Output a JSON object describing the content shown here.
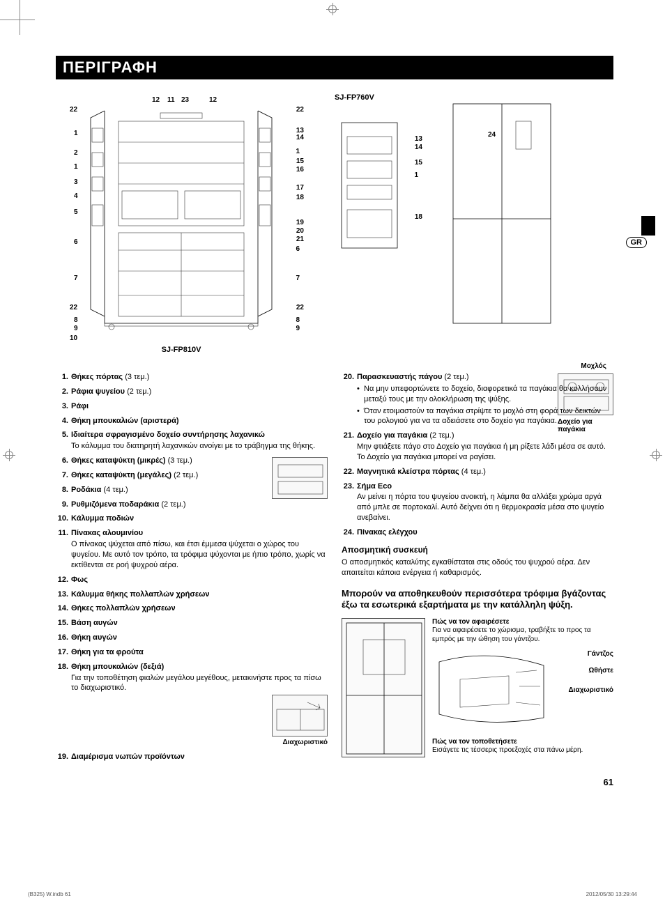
{
  "header": {
    "title": "ΠΕΡΙΓΡΑΦΗ"
  },
  "badge_language": "GR",
  "models": {
    "main": "SJ-FP810V",
    "small": "SJ-FP760V"
  },
  "main_callouts_left": [
    "22",
    "1",
    "2",
    "1",
    "3",
    "4",
    "5",
    "6",
    "7",
    "22",
    "8",
    "9",
    "10"
  ],
  "main_callouts_top": [
    "12",
    "11",
    "23",
    "12"
  ],
  "main_callouts_right": [
    "22",
    "13",
    "14",
    "1",
    "15",
    "16",
    "17",
    "18",
    "19",
    "20",
    "21",
    "6",
    "7",
    "22",
    "8",
    "9"
  ],
  "small_callouts_right": [
    "13",
    "14",
    "15",
    "1",
    "18"
  ],
  "door_callouts": [
    "24"
  ],
  "inline_labels": {
    "lever": "Μοχλός",
    "ice_container": "Δοχείο για παγάκια",
    "divider": "Διαχωριστικό",
    "hook": "Γάντζος",
    "push": "Ωθήστε",
    "divider2": "Διαχωριστικό",
    "how_remove_title": "Πώς να τον αφαιρέσετε",
    "how_remove_text": "Για να αφαιρέσετε το χώρισμα, τραβήξτε το προς τα εμπρός με την ώθηση του γάντζου.",
    "how_fit_title": "Πώς να τον τοποθετήσετε",
    "how_fit_text": "Εισάγετε τις τέσσερις προεξοχές στα πάνω μέρη."
  },
  "left_items": [
    {
      "n": "1.",
      "t": "Θήκες πόρτας",
      "q": "(3 τεμ.)"
    },
    {
      "n": "2.",
      "t": "Ράφια ψυγείου",
      "q": "(2 τεμ.)"
    },
    {
      "n": "3.",
      "t": "Ράφι"
    },
    {
      "n": "4.",
      "t": "Θήκη μπουκαλιών (αριστερά)"
    },
    {
      "n": "5.",
      "t": "Ιδιαίτερα σφραγισμένο δοχείο συντήρησης λαχανικώ",
      "d": "Το κάλυμμα του διατηρητή λαχανικών ανοίγει με το τράβηγμα της θήκης."
    },
    {
      "n": "6.",
      "t": "Θήκες καταψύκτη (μικρές)",
      "q": "(3 τεμ.)"
    },
    {
      "n": "7.",
      "t": "Θήκες καταψύκτη (μεγάλες)",
      "q": "(2 τεμ.)"
    },
    {
      "n": "8.",
      "t": "Ροδάκια",
      "q": "(4 τεμ.)"
    },
    {
      "n": "9.",
      "t": "Ρυθμιζόμενα ποδαράκια",
      "q": "(2 τεμ.)"
    },
    {
      "n": "10.",
      "t": "Κάλυμμα ποδιών"
    },
    {
      "n": "11.",
      "t": "Πίνακας αλουμινίου",
      "d": "Ο πίνακας ψύχεται από πίσω, και έτσι έμμεσα ψύχεται ο χώρος του ψυγείου. Με αυτό τον τρόπο, τα τρόφιμα ψύχονται με ήπιο τρόπο, χωρίς να εκτίθενται σε ροή ψυχρού αέρα."
    },
    {
      "n": "12.",
      "t": "Φως"
    },
    {
      "n": "13.",
      "t": "Κάλυμμα θήκης πολλαπλών χρήσεων"
    },
    {
      "n": "14.",
      "t": "Θήκες πολλαπλών χρήσεων"
    },
    {
      "n": "15.",
      "t": "Βάση αυγών"
    },
    {
      "n": "16.",
      "t": "Θήκη αυγών"
    },
    {
      "n": "17.",
      "t": "Θήκη για τα φρούτα"
    },
    {
      "n": "18.",
      "t": "Θήκη μπουκαλιών (δεξιά)",
      "d": "Για την τοποθέτηση φιαλών μεγάλου μεγέθους, μετακινήστε προς τα πίσω το διαχωριστικό."
    },
    {
      "n": "19.",
      "t": "Διαμέρισμα νωπών προϊόντων"
    }
  ],
  "right_items": [
    {
      "n": "20.",
      "t": "Παρασκευαστής πάγου",
      "q": "(2 τεμ.)",
      "bullets": [
        "Να μην υπεφορτώνετε το δοχείο, διαφορετικά τα παγάκια θα κολλήσουν μεταξύ τους με την ολοκλήρωση της ψύξης.",
        "Όταν ετοιμαστούν τα παγάκια στρίψτε το μοχλό στη φορά των δεικτών του ρολογιού για να τα αδειάσετε στο δοχείο για παγάκια."
      ]
    },
    {
      "n": "21.",
      "t": "Δοχείο για παγάκια",
      "q": "(2 τεμ.)",
      "d": "Μην φτιάξετε πάγο στο Δοχείο για παγάκια ή μη ρίξετε λάδι μέσα σε αυτό. Το Δοχείο για παγάκια μπορεί να ραγίσει."
    },
    {
      "n": "22.",
      "t": "Μαγνητικά κλείστρα πόρτας",
      "q": "(4 τεμ.)"
    },
    {
      "n": "23.",
      "t": "Σήμα Eco",
      "d": "Αν μείνει η πόρτα του ψυγείου ανοικτή, η λάμπα θα αλλάξει χρώμα αργά από μπλε σε πορτοκαλί. Αυτό δείχνει ότι η θερμοκρασία μέσα στο ψυγείο ανεβαίνει."
    },
    {
      "n": "24.",
      "t": "Πίνακας ελέγχου"
    }
  ],
  "deodorizer": {
    "title": "Αποσμητική συσκευή",
    "text": "O αποσμητικός καταλύτης εγκαθίσταται στις οδούς του ψυχρού αέρα. Δεν απαιτείται κάποια ενέργεια ή καθαρισμός."
  },
  "storage_tip": {
    "title": "Μπορούν να αποθηκευθούν περισσότερα τρόφιμα βγάζοντας έξω τα εσωτερικά εξαρτήματα με την κατάλληλη ψύξη."
  },
  "page_number": "61",
  "footer": {
    "left": "(B325) W.indb   61",
    "right": "2012/05/30   13:29:44"
  }
}
